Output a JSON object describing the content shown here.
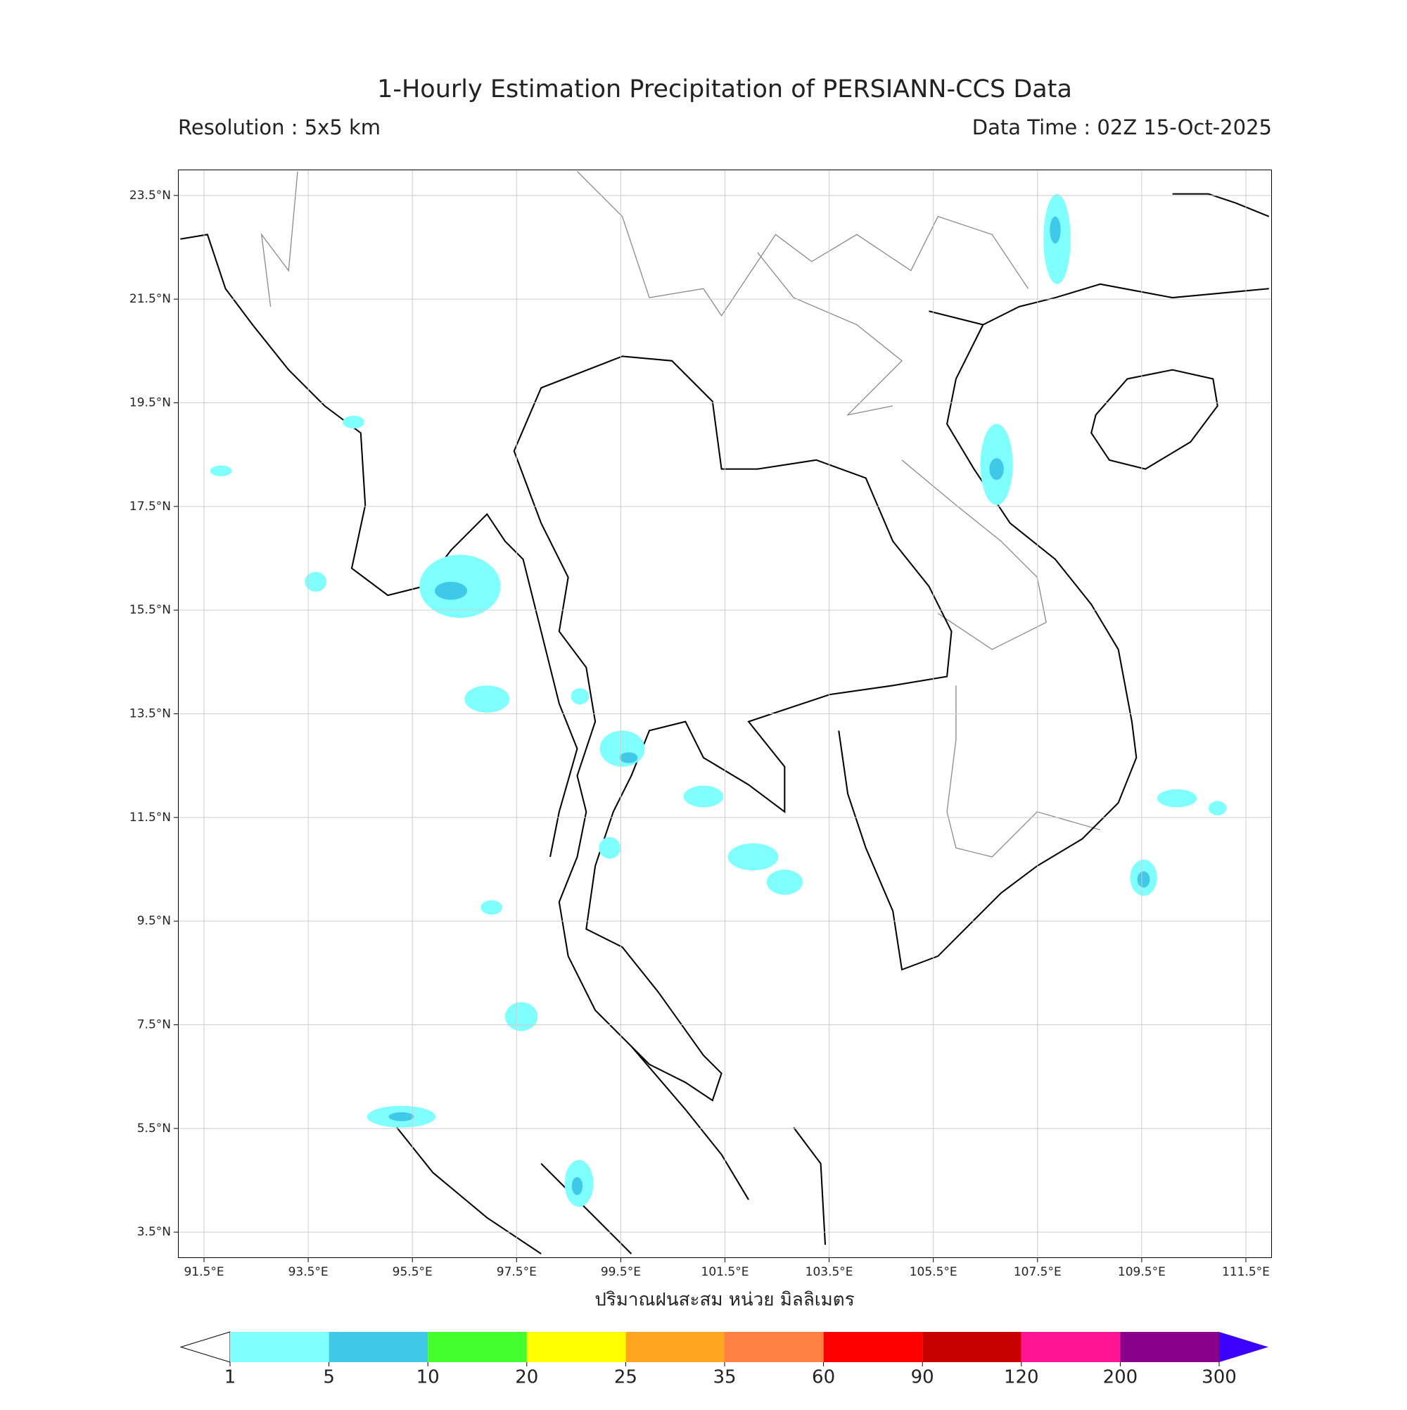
{
  "header": {
    "title": "1-Hourly Estimation Precipitation of PERSIANN-CCS Data",
    "resolution": "Resolution : 5x5 km",
    "data_time": "Data Time : 02Z 15-Oct-2025"
  },
  "map": {
    "xlim": [
      91.0,
      112.0
    ],
    "ylim": [
      3.0,
      24.0
    ],
    "xticks": [
      {
        "value": 91.5,
        "label": "91.5°E"
      },
      {
        "value": 93.5,
        "label": "93.5°E"
      },
      {
        "value": 95.5,
        "label": "95.5°E"
      },
      {
        "value": 97.5,
        "label": "97.5°E"
      },
      {
        "value": 99.5,
        "label": "99.5°E"
      },
      {
        "value": 101.5,
        "label": "101.5°E"
      },
      {
        "value": 103.5,
        "label": "103.5°E"
      },
      {
        "value": 105.5,
        "label": "105.5°E"
      },
      {
        "value": 107.5,
        "label": "107.5°E"
      },
      {
        "value": 109.5,
        "label": "109.5°E"
      },
      {
        "value": 111.5,
        "label": "111.5°E"
      }
    ],
    "yticks": [
      {
        "value": 23.5,
        "label": "23.5°N"
      },
      {
        "value": 21.5,
        "label": "21.5°N"
      },
      {
        "value": 19.5,
        "label": "19.5°N"
      },
      {
        "value": 17.5,
        "label": "17.5°N"
      },
      {
        "value": 15.5,
        "label": "15.5°N"
      },
      {
        "value": 13.5,
        "label": "13.5°N"
      },
      {
        "value": 11.5,
        "label": "11.5°N"
      },
      {
        "value": 9.5,
        "label": "9.5°N"
      },
      {
        "value": 7.5,
        "label": "7.5°N"
      },
      {
        "value": 5.5,
        "label": "5.5°N"
      },
      {
        "value": 3.5,
        "label": "3.5°N"
      }
    ],
    "grid": true,
    "xlabel": "ปริมาณฝนสะสม หน่วย มิลลิเมตร"
  },
  "colorbar": {
    "ticks": [
      1,
      5,
      10,
      20,
      25,
      35,
      60,
      90,
      120,
      200,
      300
    ],
    "colors": [
      "#80ffff",
      "#40c8e8",
      "#44ff2e",
      "#ffff00",
      "#ffa520",
      "#ff8040",
      "#ff0000",
      "#c80000",
      "#ff1493",
      "#8b008b"
    ],
    "under_color": "#ffffff",
    "over_color": "#3c00ff"
  }
}
